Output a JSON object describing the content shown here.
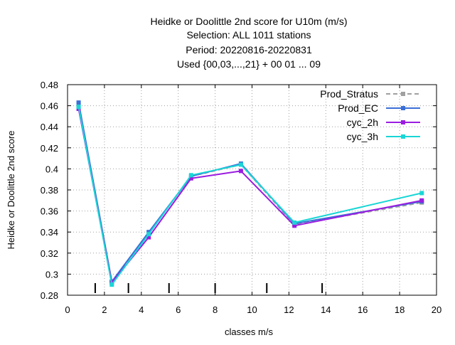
{
  "chart_data": {
    "type": "line",
    "title_lines": [
      "Heidke or Doolittle 2nd score  for U10m (m/s)",
      "Selection: ALL    1011 stations",
      "Period: 20220816-20220831",
      "Used {00,03,...,21} + 00 01 ... 09"
    ],
    "xlabel": "classes m/s",
    "ylabel": "Heidke or Doolittle 2nd score",
    "xlim": [
      0,
      20
    ],
    "ylim": [
      0.28,
      0.48
    ],
    "xticks": [
      0,
      2,
      4,
      6,
      8,
      10,
      12,
      14,
      16,
      18,
      20
    ],
    "xtick_labels": [
      "0",
      "2",
      "4",
      "6",
      "8",
      "10",
      "12",
      "14",
      "16",
      "18",
      "20"
    ],
    "yticks": [
      0.28,
      0.3,
      0.32,
      0.34,
      0.36,
      0.38,
      0.4,
      0.42,
      0.44,
      0.46,
      0.48
    ],
    "ytick_labels": [
      "0.28",
      "0.3",
      "0.32",
      "0.34",
      "0.36",
      "0.38",
      "0.4",
      "0.42",
      "0.44",
      "0.46",
      "0.48"
    ],
    "grid": true,
    "legend_position": "top-right",
    "class_boundaries": [
      1.5,
      3.3,
      5.5,
      8.0,
      10.8,
      13.8
    ],
    "x": [
      0.6,
      2.4,
      4.4,
      6.7,
      9.4,
      12.3,
      19.2
    ],
    "series": [
      {
        "name": "Prod_Stratus",
        "color": "#a0a0a0",
        "dashed": true,
        "values": [
          0.461,
          0.292,
          0.339,
          0.393,
          0.404,
          0.347,
          0.368
        ]
      },
      {
        "name": "Prod_EC",
        "color": "#3c6fd6",
        "dashed": false,
        "values": [
          0.463,
          0.293,
          0.34,
          0.393,
          0.405,
          0.348,
          0.369
        ]
      },
      {
        "name": "cyc_2h",
        "color": "#9a1de0",
        "dashed": false,
        "values": [
          0.457,
          0.292,
          0.335,
          0.391,
          0.398,
          0.346,
          0.37
        ]
      },
      {
        "name": "cyc_3h",
        "color": "#1ad6d6",
        "dashed": false,
        "values": [
          0.459,
          0.29,
          0.338,
          0.394,
          0.404,
          0.349,
          0.377
        ]
      }
    ]
  }
}
